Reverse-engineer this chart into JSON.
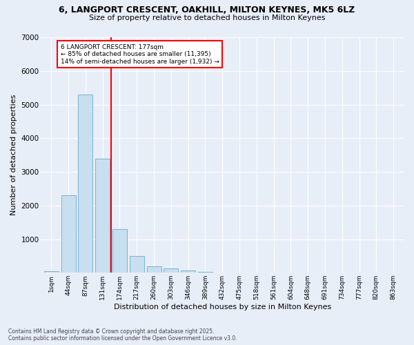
{
  "title_line1": "6, LANGPORT CRESCENT, OAKHILL, MILTON KEYNES, MK5 6LZ",
  "title_line2": "Size of property relative to detached houses in Milton Keynes",
  "xlabel": "Distribution of detached houses by size in Milton Keynes",
  "ylabel": "Number of detached properties",
  "categories": [
    "1sqm",
    "44sqm",
    "87sqm",
    "131sqm",
    "174sqm",
    "217sqm",
    "260sqm",
    "303sqm",
    "346sqm",
    "389sqm",
    "432sqm",
    "475sqm",
    "518sqm",
    "561sqm",
    "604sqm",
    "648sqm",
    "691sqm",
    "734sqm",
    "777sqm",
    "820sqm",
    "863sqm"
  ],
  "values": [
    50,
    2300,
    5300,
    3400,
    1300,
    500,
    200,
    120,
    60,
    30,
    10,
    5,
    0,
    0,
    0,
    0,
    0,
    0,
    0,
    0,
    0
  ],
  "bar_color": "#c8dff0",
  "bar_edge_color": "#7ab0d4",
  "vline_color": "red",
  "vline_index": 3.5,
  "annotation_text": "6 LANGPORT CRESCENT: 177sqm\n← 85% of detached houses are smaller (11,395)\n14% of semi-detached houses are larger (1,932) →",
  "annotation_box_color": "red",
  "background_color": "#e8eef8",
  "grid_color": "white",
  "ylim": [
    0,
    7000
  ],
  "yticks": [
    0,
    1000,
    2000,
    3000,
    4000,
    5000,
    6000,
    7000
  ],
  "footer_line1": "Contains HM Land Registry data © Crown copyright and database right 2025.",
  "footer_line2": "Contains public sector information licensed under the Open Government Licence v3.0."
}
